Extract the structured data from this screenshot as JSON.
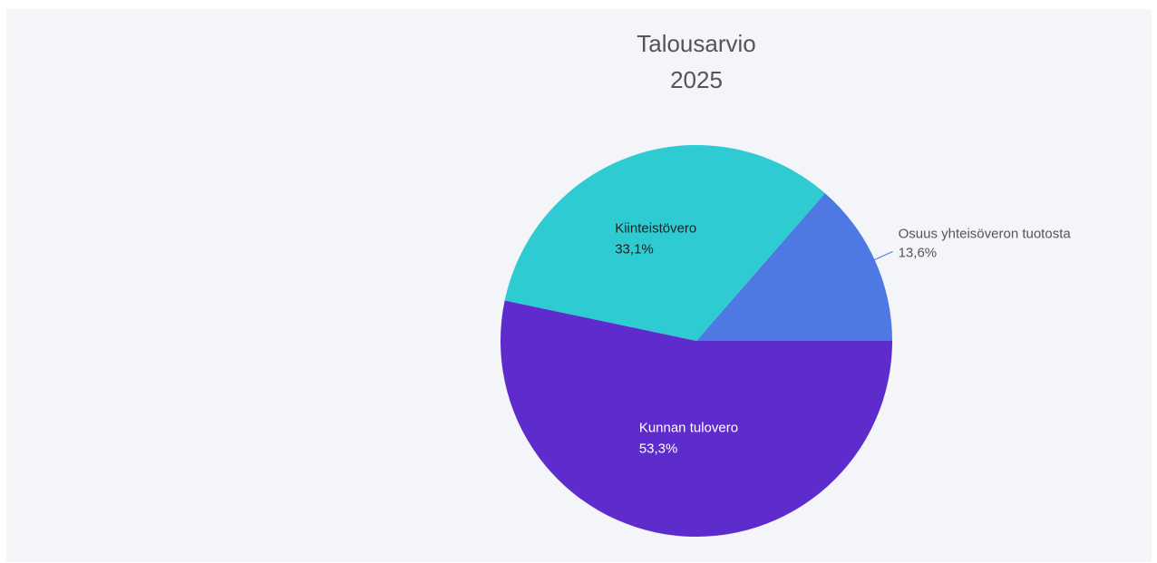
{
  "chart_data": {
    "type": "pie",
    "title": "Talousarvio",
    "subtitle": "2025",
    "categories": [
      "Osuus yhteisöveron tuotosta",
      "Kiinteistövero",
      "Kunnan tulovero"
    ],
    "values": [
      13.6,
      33.1,
      53.3
    ],
    "value_labels": [
      "13,6%",
      "33,1%",
      "53,3%"
    ],
    "colors": [
      "#4e79e3",
      "#2ecbd3",
      "#5e2bcc"
    ]
  }
}
